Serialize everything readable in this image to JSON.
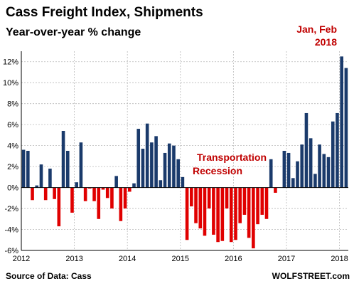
{
  "chart_data": {
    "type": "bar",
    "title": "Cass Freight Index,  Shipments",
    "subtitle": "Year-over-year % change",
    "source": "Source of Data: Cass",
    "brand": "WOLFSTREET.com",
    "annotations": {
      "peak": [
        "Jan, Feb",
        "2018"
      ],
      "recession": [
        "Transportation",
        "Recession"
      ]
    },
    "ylim": [
      -6,
      13
    ],
    "yticks": [
      -6,
      -4,
      -2,
      0,
      2,
      4,
      6,
      8,
      10,
      12
    ],
    "ytick_labels": [
      "-6%",
      "-4%",
      "-2%",
      "0%",
      "2%",
      "4%",
      "6%",
      "8%",
      "10%",
      "12%"
    ],
    "xticks": [
      {
        "label": "2012",
        "index": 0
      },
      {
        "label": "2013",
        "index": 12
      },
      {
        "label": "2014",
        "index": 24
      },
      {
        "label": "2015",
        "index": 36
      },
      {
        "label": "2016",
        "index": 48
      },
      {
        "label": "2017",
        "index": 60
      },
      {
        "label": "2018",
        "index": 72
      }
    ],
    "x": [
      "2012-01",
      "2012-02",
      "2012-03",
      "2012-04",
      "2012-05",
      "2012-06",
      "2012-07",
      "2012-08",
      "2012-09",
      "2012-10",
      "2012-11",
      "2012-12",
      "2013-01",
      "2013-02",
      "2013-03",
      "2013-04",
      "2013-05",
      "2013-06",
      "2013-07",
      "2013-08",
      "2013-09",
      "2013-10",
      "2013-11",
      "2013-12",
      "2014-01",
      "2014-02",
      "2014-03",
      "2014-04",
      "2014-05",
      "2014-06",
      "2014-07",
      "2014-08",
      "2014-09",
      "2014-10",
      "2014-11",
      "2014-12",
      "2015-01",
      "2015-02",
      "2015-03",
      "2015-04",
      "2015-05",
      "2015-06",
      "2015-07",
      "2015-08",
      "2015-09",
      "2015-10",
      "2015-11",
      "2015-12",
      "2016-01",
      "2016-02",
      "2016-03",
      "2016-04",
      "2016-05",
      "2016-06",
      "2016-07",
      "2016-08",
      "2016-09",
      "2016-10",
      "2016-11",
      "2016-12",
      "2017-01",
      "2017-02",
      "2017-03",
      "2017-04",
      "2017-05",
      "2017-06",
      "2017-07",
      "2017-08",
      "2017-09",
      "2017-10",
      "2017-11",
      "2017-12",
      "2018-01",
      "2018-02"
    ],
    "values": [
      3.6,
      3.5,
      -1.2,
      0.2,
      2.2,
      -1.2,
      1.8,
      -1.1,
      -3.7,
      5.4,
      3.5,
      -2.4,
      0.5,
      4.3,
      -1.3,
      -0.1,
      -1.3,
      -3.0,
      -0.2,
      -1.0,
      -2.0,
      1.1,
      -3.2,
      -2.0,
      -0.4,
      0.4,
      5.6,
      3.7,
      6.1,
      4.3,
      4.9,
      0.7,
      3.3,
      4.2,
      4.0,
      2.7,
      1.0,
      -5.0,
      -1.8,
      -3.4,
      -3.9,
      -4.6,
      -2.0,
      -4.5,
      -5.2,
      -5.1,
      -2.0,
      -5.2,
      -5.0,
      -3.4,
      -2.6,
      -4.8,
      -5.8,
      -3.5,
      -2.6,
      -3.0,
      2.7,
      -0.5,
      0.0,
      3.5,
      3.3,
      0.9,
      2.5,
      4.1,
      7.1,
      4.7,
      1.3,
      4.1,
      3.2,
      2.9,
      6.3,
      7.1,
      12.5,
      11.4
    ],
    "colors": {
      "positive": "#1a3a6b",
      "negative": "#e00000"
    },
    "grid": true
  }
}
